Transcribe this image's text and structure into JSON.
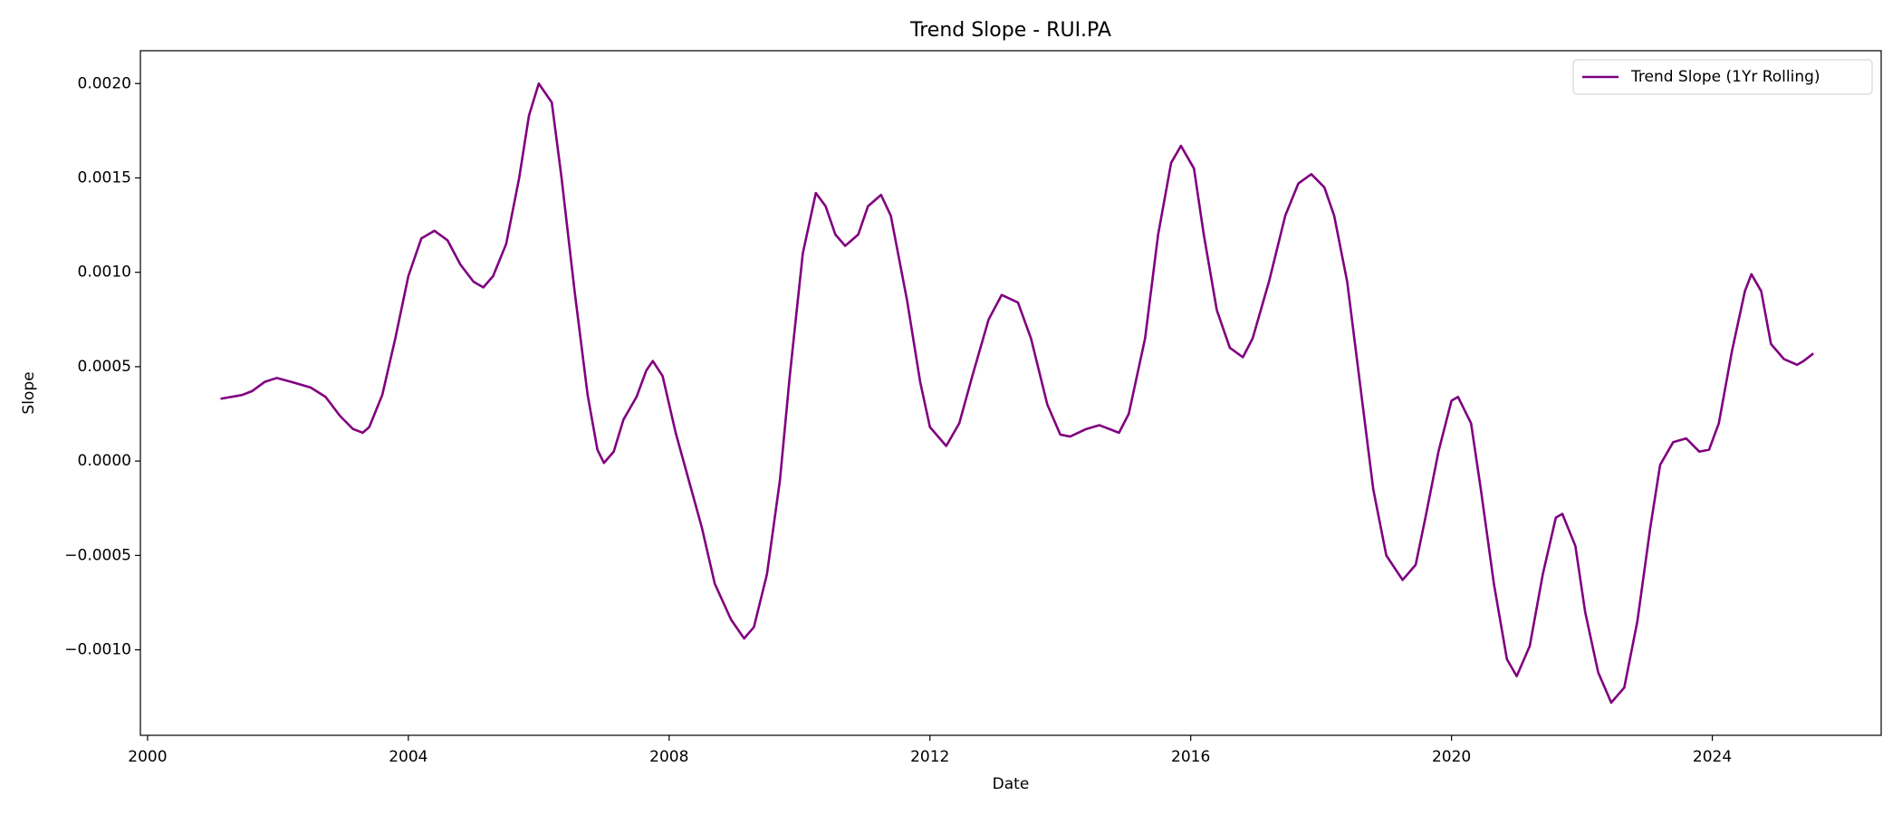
{
  "chart_data": {
    "type": "line",
    "title": "Trend Slope - RUI.PA",
    "xlabel": "Date",
    "ylabel": "Slope",
    "xlim": [
      1999.89,
      2026.59
    ],
    "xticks": [
      2000,
      2004,
      2008,
      2012,
      2016,
      2020,
      2024
    ],
    "ylim": [
      -0.001453,
      0.002174
    ],
    "yticks": [
      {
        "value": -0.001,
        "label": "−0.0010"
      },
      {
        "value": -0.0005,
        "label": "−0.0005"
      },
      {
        "value": 0,
        "label": "0.0000"
      },
      {
        "value": 0.0005,
        "label": "0.0005"
      },
      {
        "value": 0.001,
        "label": "0.0010"
      },
      {
        "value": 0.0015,
        "label": "0.0015"
      },
      {
        "value": 0.002,
        "label": "0.0020"
      }
    ],
    "grid": false,
    "legend": "upper right",
    "x": [
      2001.12,
      2001.45,
      2001.6,
      2001.8,
      2001.98,
      2002.2,
      2002.5,
      2002.73,
      2002.95,
      2003.15,
      2003.3,
      2003.4,
      2003.6,
      2003.8,
      2004.0,
      2004.2,
      2004.4,
      2004.6,
      2004.8,
      2005.0,
      2005.15,
      2005.3,
      2005.5,
      2005.7,
      2005.85,
      2006.0,
      2006.2,
      2006.35,
      2006.55,
      2006.75,
      2006.9,
      2007.0,
      2007.15,
      2007.3,
      2007.5,
      2007.65,
      2007.75,
      2007.9,
      2008.1,
      2008.3,
      2008.5,
      2008.7,
      2008.95,
      2009.15,
      2009.3,
      2009.5,
      2009.7,
      2009.85,
      2010.05,
      2010.25,
      2010.4,
      2010.55,
      2010.7,
      2010.9,
      2011.05,
      2011.25,
      2011.4,
      2011.65,
      2011.85,
      2012.0,
      2012.25,
      2012.45,
      2012.65,
      2012.9,
      2013.1,
      2013.35,
      2013.55,
      2013.8,
      2014.0,
      2014.15,
      2014.4,
      2014.6,
      2014.9,
      2015.05,
      2015.3,
      2015.5,
      2015.7,
      2015.85,
      2016.05,
      2016.2,
      2016.4,
      2016.6,
      2016.8,
      2016.95,
      2017.2,
      2017.45,
      2017.65,
      2017.85,
      2018.05,
      2018.2,
      2018.4,
      2018.6,
      2018.8,
      2019.0,
      2019.25,
      2019.45,
      2019.6,
      2019.8,
      2020.0,
      2020.1,
      2020.3,
      2020.45,
      2020.65,
      2020.85,
      2021.0,
      2021.2,
      2021.4,
      2021.6,
      2021.7,
      2021.9,
      2022.05,
      2022.25,
      2022.45,
      2022.65,
      2022.85,
      2023.05,
      2023.2,
      2023.4,
      2023.6,
      2023.8,
      2023.95,
      2024.1,
      2024.3,
      2024.5,
      2024.6,
      2024.75,
      2024.9,
      2025.1,
      2025.3,
      2025.4,
      2025.55
    ],
    "series": [
      {
        "name": "Trend Slope (1Yr Rolling)",
        "color": "#800080",
        "values": [
          0.00033,
          0.00035,
          0.00037,
          0.00042,
          0.00044,
          0.00042,
          0.00039,
          0.00034,
          0.00024,
          0.00017,
          0.00015,
          0.00018,
          0.00035,
          0.00065,
          0.00098,
          0.00118,
          0.00122,
          0.00117,
          0.00104,
          0.00095,
          0.00092,
          0.00098,
          0.00115,
          0.0015,
          0.00183,
          0.002,
          0.0019,
          0.0015,
          0.0009,
          0.00035,
          6e-05,
          -1e-05,
          5e-05,
          0.00022,
          0.00034,
          0.00048,
          0.00053,
          0.00045,
          0.00015,
          -0.0001,
          -0.00035,
          -0.00065,
          -0.00084,
          -0.00094,
          -0.00088,
          -0.0006,
          -0.0001,
          0.00045,
          0.0011,
          0.00142,
          0.00135,
          0.0012,
          0.00114,
          0.0012,
          0.00135,
          0.00141,
          0.0013,
          0.00085,
          0.00042,
          0.00018,
          8e-05,
          0.0002,
          0.00045,
          0.00075,
          0.00088,
          0.00084,
          0.00065,
          0.0003,
          0.00014,
          0.00013,
          0.00017,
          0.00019,
          0.00015,
          0.00025,
          0.00065,
          0.0012,
          0.00158,
          0.00167,
          0.00155,
          0.0012,
          0.0008,
          0.0006,
          0.00055,
          0.00065,
          0.00095,
          0.0013,
          0.00147,
          0.00152,
          0.00145,
          0.0013,
          0.00095,
          0.0004,
          -0.00015,
          -0.0005,
          -0.00063,
          -0.00055,
          -0.0003,
          5e-05,
          0.00032,
          0.00034,
          0.0002,
          -0.00015,
          -0.00065,
          -0.00105,
          -0.00114,
          -0.00098,
          -0.0006,
          -0.0003,
          -0.00028,
          -0.00045,
          -0.0008,
          -0.00112,
          -0.00128,
          -0.0012,
          -0.00085,
          -0.00035,
          -2e-05,
          0.0001,
          0.00012,
          5e-05,
          6e-05,
          0.0002,
          0.00058,
          0.0009,
          0.00099,
          0.0009,
          0.00062,
          0.00054,
          0.00051,
          0.00053,
          0.00057
        ]
      }
    ]
  }
}
